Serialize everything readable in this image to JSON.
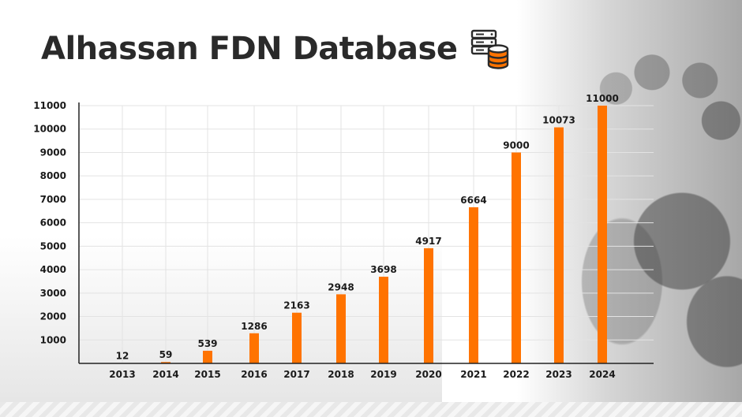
{
  "title": "Alhassan FDN Database",
  "icons": {
    "title_icon": "database-server-icon"
  },
  "colors": {
    "bar": "#ff7300",
    "title": "#2a2a2a",
    "grid": "#e3e3e3"
  },
  "chart_data": {
    "type": "bar",
    "title": "Alhassan FDN Database",
    "xlabel": "",
    "ylabel": "",
    "categories": [
      "2013",
      "2014",
      "2015",
      "2016",
      "2017",
      "2018",
      "2019",
      "2020",
      "2021",
      "2022",
      "2023",
      "2024"
    ],
    "values": [
      12,
      59,
      539,
      1286,
      2163,
      2948,
      3698,
      4917,
      6664,
      9000,
      10073,
      11000
    ],
    "data_labels": [
      "12",
      "59",
      "539",
      "1286",
      "2163",
      "2948",
      "3698",
      "4917",
      "6664",
      "9000",
      "10073",
      "11000"
    ],
    "yticks": [
      1000,
      2000,
      3000,
      4000,
      5000,
      6000,
      7000,
      8000,
      9000,
      10000,
      11000
    ],
    "ylim": [
      0,
      11000
    ],
    "grid": true,
    "legend": "none"
  }
}
